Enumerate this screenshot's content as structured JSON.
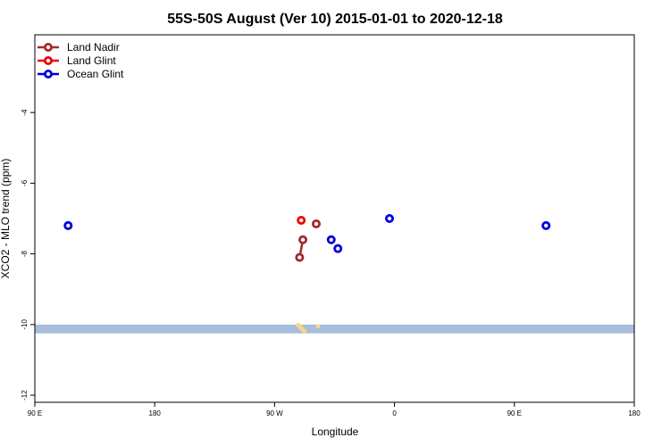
{
  "chart_data": {
    "type": "scatter",
    "title": "55S-50S August (Ver 10)   2015-01-01 to 2020-12-18",
    "xlabel": "Longitude",
    "ylabel": "XCO2 - MLO trend (ppm)",
    "xlim": [
      0,
      360
    ],
    "ylim": [
      -12.2,
      -1.8
    ],
    "x_ticks": [
      {
        "value": 0,
        "label": "90 E"
      },
      {
        "value": 72,
        "label": "180"
      },
      {
        "value": 144,
        "label": "90 W"
      },
      {
        "value": 216,
        "label": "0"
      },
      {
        "value": 288,
        "label": "90 E"
      },
      {
        "value": 360,
        "label": "180"
      }
    ],
    "y_ticks": [
      {
        "value": -4,
        "label": "-4"
      },
      {
        "value": -6,
        "label": "-6"
      },
      {
        "value": -8,
        "label": "-8"
      },
      {
        "value": -10,
        "label": "-10"
      },
      {
        "value": -12,
        "label": "-12"
      }
    ],
    "legend_position": "top-left",
    "series": [
      {
        "name": "Land Nadir",
        "color": "#a52a2a",
        "connected": true,
        "points": [
          [
            159,
            -8.1
          ],
          [
            161,
            -7.6
          ]
        ]
      },
      {
        "name": "Land Nadir",
        "color": "#a52a2a",
        "connected": false,
        "legend": false,
        "points": [
          [
            169,
            -7.15
          ]
        ]
      },
      {
        "name": "Land Glint",
        "color": "#ee0000",
        "connected": false,
        "points": [
          [
            160,
            -7.05
          ]
        ]
      },
      {
        "name": "Ocean Glint",
        "color": "#0000dd",
        "connected": false,
        "points": [
          [
            20,
            -7.2
          ],
          [
            178,
            -7.6
          ],
          [
            182,
            -7.85
          ],
          [
            213,
            -7.0
          ],
          [
            307,
            -7.2
          ]
        ]
      }
    ],
    "background_band": {
      "y_from": -10.25,
      "y_to": -10.0,
      "color": "#a8bedc"
    },
    "land_marks": {
      "color": "#f5d78c",
      "points": [
        [
          158,
          -10.02
        ],
        [
          159,
          -10.05
        ],
        [
          160,
          -10.1
        ],
        [
          161,
          -10.15
        ],
        [
          162,
          -10.2
        ],
        [
          170,
          -10.05
        ]
      ]
    }
  }
}
